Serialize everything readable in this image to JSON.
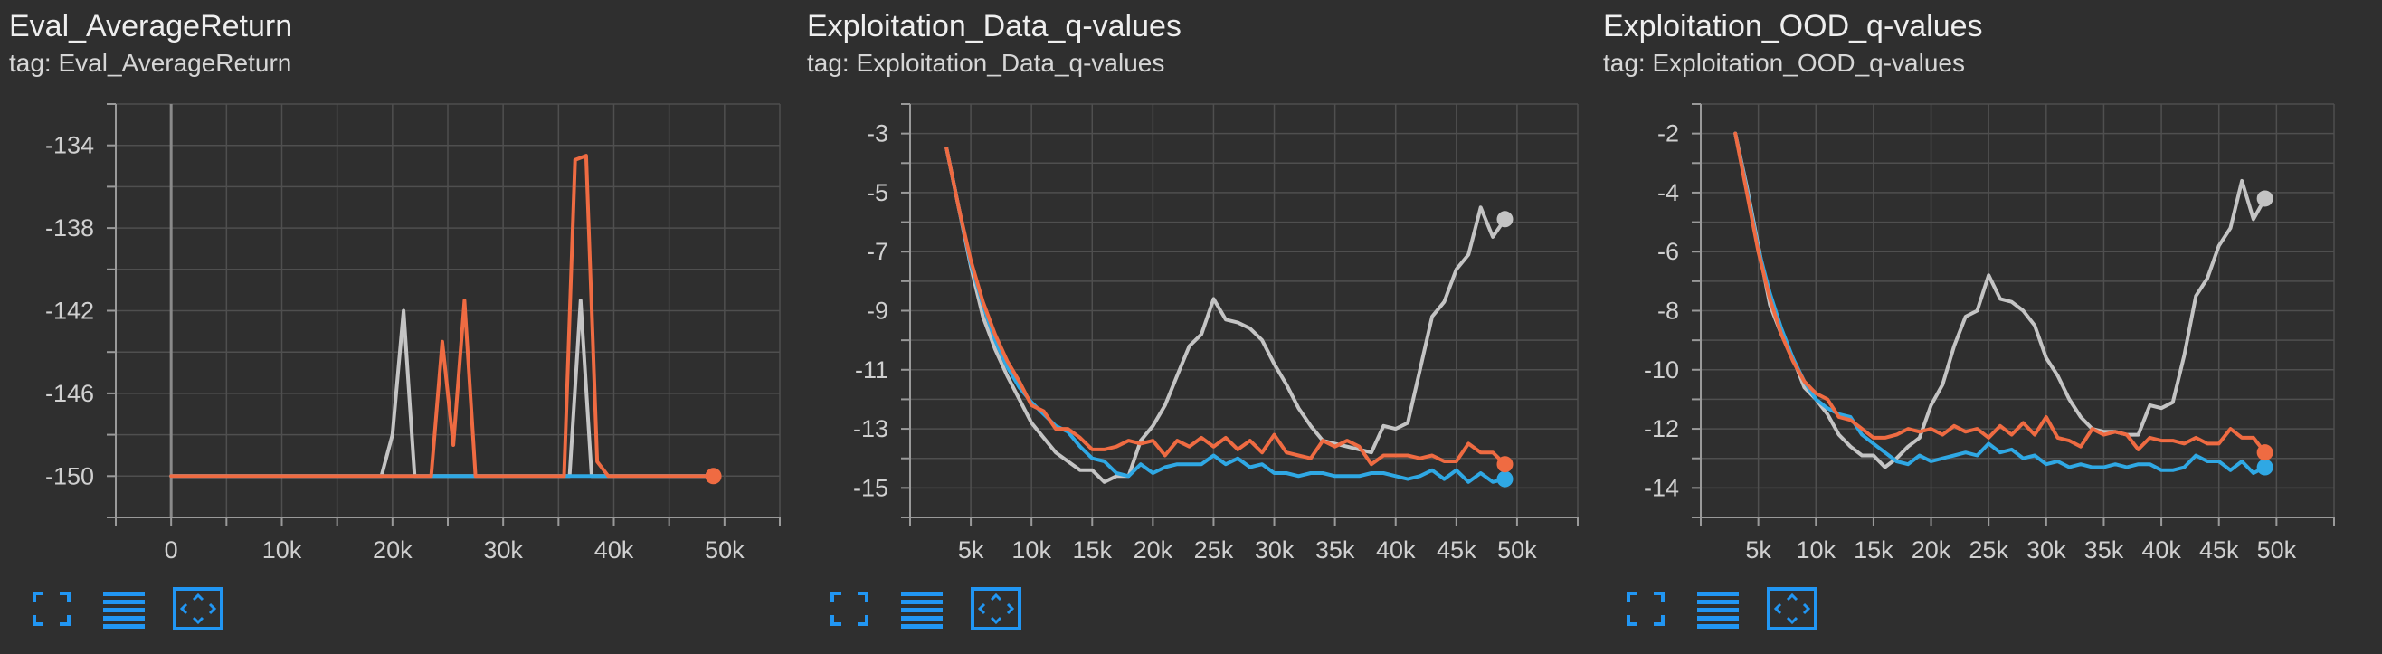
{
  "colors": {
    "background": "#2f2f2f",
    "grid": "#4f4f4f",
    "axis": "#9a9a9a",
    "tick_text": "#d0d0d0",
    "series_orange": "#ef6b42",
    "series_gray": "#c4c4c4",
    "series_blue": "#2fa8e4",
    "toolbar_icon": "#2196f3"
  },
  "toolbar": {
    "icons": [
      "fullscreen-icon",
      "toggle-data-list-icon",
      "fit-domain-icon"
    ]
  },
  "charts": [
    {
      "title": "Eval_AverageReturn",
      "tag_label": "tag: Eval_AverageReturn",
      "chart_data": {
        "type": "line",
        "title": "Eval_AverageReturn",
        "xlabel": "",
        "ylabel": "",
        "xlim": [
          -5000,
          55000
        ],
        "ylim": [
          -152,
          -132
        ],
        "x_ticks": [
          0,
          10000,
          20000,
          30000,
          40000,
          50000
        ],
        "x_tick_labels": [
          "0",
          "10k",
          "20k",
          "30k",
          "40k",
          "50k"
        ],
        "y_ticks": [
          -150,
          -146,
          -142,
          -138,
          -134
        ],
        "y_tick_labels": [
          "-150",
          "-146",
          "-142",
          "-138",
          "-134"
        ],
        "x_zero_line": true,
        "grid": true,
        "series": [
          {
            "color": "#c4c4c4",
            "x": [
              0,
              19000,
              20000,
              21000,
              22000,
              23000,
              35000,
              36000,
              37000,
              38000,
              49000
            ],
            "y": [
              -150,
              -150,
              -148,
              -142,
              -150,
              -150,
              -150,
              -150,
              -141.5,
              -150,
              -150
            ]
          },
          {
            "color": "#2fa8e4",
            "x": [
              0,
              49000
            ],
            "y": [
              -150,
              -150
            ]
          },
          {
            "color": "#ef6b42",
            "end_marker": true,
            "x": [
              0,
              22500,
              23500,
              24500,
              25500,
              26500,
              27500,
              35500,
              36500,
              37500,
              38500,
              39500,
              49000
            ],
            "y": [
              -150,
              -150,
              -150,
              -143.5,
              -148.5,
              -141.5,
              -150,
              -150,
              -134.7,
              -134.5,
              -149.3,
              -150,
              -150
            ]
          }
        ]
      }
    },
    {
      "title": "Exploitation_Data_q-values",
      "tag_label": "tag: Exploitation_Data_q-values",
      "chart_data": {
        "type": "line",
        "title": "Exploitation_Data_q-values",
        "xlabel": "",
        "ylabel": "",
        "xlim": [
          0,
          55000
        ],
        "ylim": [
          -16,
          -2
        ],
        "x_ticks": [
          5000,
          10000,
          15000,
          20000,
          25000,
          30000,
          35000,
          40000,
          45000,
          50000
        ],
        "x_tick_labels": [
          "5k",
          "10k",
          "15k",
          "20k",
          "25k",
          "30k",
          "35k",
          "40k",
          "45k",
          "50k"
        ],
        "y_ticks": [
          -15,
          -13,
          -11,
          -9,
          -7,
          -5,
          -3
        ],
        "y_tick_labels": [
          "-15",
          "-13",
          "-11",
          "-9",
          "-7",
          "-5",
          "-3"
        ],
        "x_zero_line": false,
        "grid": true,
        "series": [
          {
            "color": "#c4c4c4",
            "end_marker": true,
            "x": [
              3000,
              4000,
              5000,
              6000,
              7000,
              8000,
              9000,
              10000,
              11000,
              12000,
              13000,
              14000,
              15000,
              16000,
              17000,
              18000,
              19000,
              20000,
              21000,
              22000,
              23000,
              24000,
              25000,
              26000,
              27000,
              28000,
              29000,
              30000,
              31000,
              32000,
              33000,
              34000,
              35000,
              36000,
              37000,
              38000,
              39000,
              40000,
              41000,
              42000,
              43000,
              44000,
              45000,
              46000,
              47000,
              48000,
              49000
            ],
            "y": [
              -3.5,
              -5.5,
              -7.5,
              -9.2,
              -10.3,
              -11.2,
              -12,
              -12.8,
              -13.3,
              -13.8,
              -14.1,
              -14.4,
              -14.4,
              -14.8,
              -14.6,
              -14.6,
              -13.4,
              -12.9,
              -12.2,
              -11.2,
              -10.2,
              -9.8,
              -8.6,
              -9.3,
              -9.4,
              -9.6,
              -10.0,
              -10.8,
              -11.5,
              -12.3,
              -12.9,
              -13.4,
              -13.5,
              -13.6,
              -13.7,
              -13.8,
              -12.9,
              -13.0,
              -12.8,
              -11.0,
              -9.2,
              -8.7,
              -7.6,
              -7.1,
              -5.5,
              -6.5,
              -5.9
            ]
          },
          {
            "color": "#2fa8e4",
            "end_marker": true,
            "x": [
              3000,
              4000,
              5000,
              6000,
              7000,
              8000,
              9000,
              10000,
              11000,
              12000,
              13000,
              14000,
              15000,
              16000,
              17000,
              18000,
              19000,
              20000,
              21000,
              22000,
              23000,
              24000,
              25000,
              26000,
              27000,
              28000,
              29000,
              30000,
              31000,
              32000,
              33000,
              34000,
              35000,
              36000,
              37000,
              38000,
              39000,
              40000,
              41000,
              42000,
              43000,
              44000,
              45000,
              46000,
              47000,
              48000,
              49000
            ],
            "y": [
              -3.5,
              -5.5,
              -7.4,
              -8.8,
              -10.0,
              -10.9,
              -11.6,
              -12.1,
              -12.5,
              -12.9,
              -13.1,
              -13.6,
              -14.0,
              -14.1,
              -14.5,
              -14.6,
              -14.2,
              -14.5,
              -14.3,
              -14.2,
              -14.2,
              -14.2,
              -13.9,
              -14.2,
              -14.0,
              -14.3,
              -14.2,
              -14.5,
              -14.5,
              -14.6,
              -14.5,
              -14.5,
              -14.6,
              -14.6,
              -14.6,
              -14.5,
              -14.5,
              -14.6,
              -14.7,
              -14.6,
              -14.4,
              -14.7,
              -14.4,
              -14.8,
              -14.5,
              -14.8,
              -14.7
            ]
          },
          {
            "color": "#ef6b42",
            "end_marker": true,
            "x": [
              3000,
              4000,
              5000,
              6000,
              7000,
              8000,
              9000,
              10000,
              11000,
              12000,
              13000,
              14000,
              15000,
              16000,
              17000,
              18000,
              19000,
              20000,
              21000,
              22000,
              23000,
              24000,
              25000,
              26000,
              27000,
              28000,
              29000,
              30000,
              31000,
              32000,
              33000,
              34000,
              35000,
              36000,
              37000,
              38000,
              39000,
              40000,
              41000,
              42000,
              43000,
              44000,
              45000,
              46000,
              47000,
              48000,
              49000
            ],
            "y": [
              -3.5,
              -5.5,
              -7.3,
              -8.7,
              -9.8,
              -10.7,
              -11.4,
              -12.2,
              -12.4,
              -13.0,
              -13.0,
              -13.3,
              -13.7,
              -13.7,
              -13.6,
              -13.4,
              -13.5,
              -13.4,
              -13.9,
              -13.4,
              -13.6,
              -13.3,
              -13.6,
              -13.3,
              -13.7,
              -13.4,
              -13.8,
              -13.2,
              -13.8,
              -13.9,
              -14.0,
              -13.4,
              -13.6,
              -13.4,
              -13.6,
              -14.2,
              -13.9,
              -13.9,
              -13.9,
              -14.0,
              -13.9,
              -14.1,
              -14.1,
              -13.5,
              -13.8,
              -13.8,
              -14.2
            ]
          }
        ]
      }
    },
    {
      "title": "Exploitation_OOD_q-values",
      "tag_label": "tag: Exploitation_OOD_q-values",
      "chart_data": {
        "type": "line",
        "title": "Exploitation_OOD_q-values",
        "xlabel": "",
        "ylabel": "",
        "xlim": [
          0,
          55000
        ],
        "ylim": [
          -15,
          -1
        ],
        "x_ticks": [
          5000,
          10000,
          15000,
          20000,
          25000,
          30000,
          35000,
          40000,
          45000,
          50000
        ],
        "x_tick_labels": [
          "5k",
          "10k",
          "15k",
          "20k",
          "25k",
          "30k",
          "35k",
          "40k",
          "45k",
          "50k"
        ],
        "y_ticks": [
          -14,
          -12,
          -10,
          -8,
          -6,
          -4,
          -2
        ],
        "y_tick_labels": [
          "-14",
          "-12",
          "-10",
          "-8",
          "-6",
          "-4",
          "-2"
        ],
        "x_zero_line": false,
        "grid": true,
        "series": [
          {
            "color": "#c4c4c4",
            "end_marker": true,
            "x": [
              3000,
              4000,
              5000,
              6000,
              7000,
              8000,
              9000,
              10000,
              11000,
              12000,
              13000,
              14000,
              15000,
              16000,
              17000,
              18000,
              19000,
              20000,
              21000,
              22000,
              23000,
              24000,
              25000,
              26000,
              27000,
              28000,
              29000,
              30000,
              31000,
              32000,
              33000,
              34000,
              35000,
              36000,
              37000,
              38000,
              39000,
              40000,
              41000,
              42000,
              43000,
              44000,
              45000,
              46000,
              47000,
              48000,
              49000
            ],
            "y": [
              -2.0,
              -3.8,
              -5.8,
              -7.8,
              -8.8,
              -9.6,
              -10.6,
              -11.0,
              -11.5,
              -12.2,
              -12.6,
              -12.9,
              -12.9,
              -13.3,
              -13.0,
              -12.6,
              -12.3,
              -11.2,
              -10.5,
              -9.2,
              -8.2,
              -8.0,
              -6.8,
              -7.6,
              -7.7,
              -8.0,
              -8.5,
              -9.6,
              -10.2,
              -11.0,
              -11.6,
              -12.0,
              -12.1,
              -12.1,
              -12.2,
              -12.2,
              -11.2,
              -11.3,
              -11.1,
              -9.5,
              -7.5,
              -6.9,
              -5.8,
              -5.2,
              -3.6,
              -4.9,
              -4.2
            ]
          },
          {
            "color": "#2fa8e4",
            "end_marker": true,
            "x": [
              3000,
              4000,
              5000,
              6000,
              7000,
              8000,
              9000,
              10000,
              11000,
              12000,
              13000,
              14000,
              15000,
              16000,
              17000,
              18000,
              19000,
              20000,
              21000,
              22000,
              23000,
              24000,
              25000,
              26000,
              27000,
              28000,
              29000,
              30000,
              31000,
              32000,
              33000,
              34000,
              35000,
              36000,
              37000,
              38000,
              39000,
              40000,
              41000,
              42000,
              43000,
              44000,
              45000,
              46000,
              47000,
              48000,
              49000
            ],
            "y": [
              -2.0,
              -3.9,
              -5.9,
              -7.4,
              -8.6,
              -9.6,
              -10.4,
              -11.0,
              -11.3,
              -11.5,
              -11.6,
              -12.2,
              -12.5,
              -12.8,
              -13.1,
              -13.2,
              -12.9,
              -13.1,
              -13.0,
              -12.9,
              -12.8,
              -12.9,
              -12.5,
              -12.8,
              -12.7,
              -13.0,
              -12.9,
              -13.2,
              -13.1,
              -13.3,
              -13.2,
              -13.3,
              -13.3,
              -13.2,
              -13.3,
              -13.2,
              -13.2,
              -13.4,
              -13.4,
              -13.3,
              -12.9,
              -13.1,
              -13.1,
              -13.4,
              -13.1,
              -13.5,
              -13.3
            ]
          },
          {
            "color": "#ef6b42",
            "end_marker": true,
            "x": [
              3000,
              4000,
              5000,
              6000,
              7000,
              8000,
              9000,
              10000,
              11000,
              12000,
              13000,
              14000,
              15000,
              16000,
              17000,
              18000,
              19000,
              20000,
              21000,
              22000,
              23000,
              24000,
              25000,
              26000,
              27000,
              28000,
              29000,
              30000,
              31000,
              32000,
              33000,
              34000,
              35000,
              36000,
              37000,
              38000,
              39000,
              40000,
              41000,
              42000,
              43000,
              44000,
              45000,
              46000,
              47000,
              48000,
              49000
            ],
            "y": [
              -2.0,
              -4.0,
              -6.0,
              -7.6,
              -8.8,
              -9.7,
              -10.4,
              -10.8,
              -11.0,
              -11.6,
              -11.7,
              -12.0,
              -12.3,
              -12.3,
              -12.2,
              -12.0,
              -12.1,
              -12.0,
              -12.2,
              -11.9,
              -12.1,
              -12.0,
              -12.3,
              -11.9,
              -12.2,
              -11.8,
              -12.2,
              -11.6,
              -12.3,
              -12.4,
              -12.6,
              -12.0,
              -12.2,
              -12.1,
              -12.2,
              -12.7,
              -12.3,
              -12.4,
              -12.4,
              -12.5,
              -12.3,
              -12.5,
              -12.5,
              -12.0,
              -12.3,
              -12.3,
              -12.8
            ]
          }
        ]
      }
    }
  ]
}
